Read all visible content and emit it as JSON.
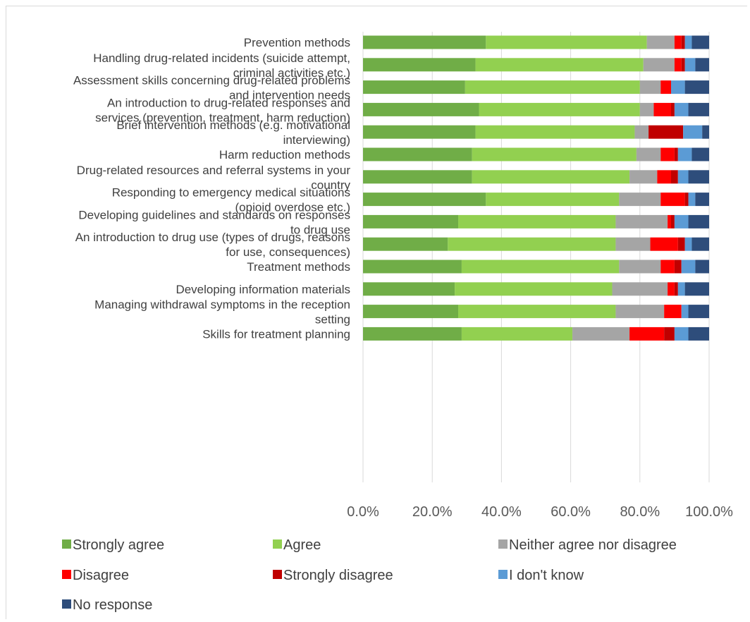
{
  "chart_data": {
    "type": "bar",
    "orientation": "horizontal",
    "stacked": true,
    "percent": true,
    "title": "",
    "xlabel": "",
    "ylabel": "",
    "xlim": [
      0,
      100
    ],
    "x_ticks": [
      "0.0%",
      "20.0%",
      "40.0%",
      "60.0%",
      "80.0%",
      "100.0%"
    ],
    "grid": true,
    "legend_position": "bottom",
    "categories": [
      "Prevention methods",
      "Handling drug-related incidents (suicide attempt, criminal activities etc.)",
      "Assessment skills concerning drug-related problems and intervention needs",
      "An introduction to drug-related responses and services (prevention, treatment, harm reduction)",
      "Brief intervention methods (e.g. motivational interviewing)",
      "Harm reduction methods",
      "Drug-related resources and referral systems in your country",
      "Responding to emergency medical situations (opioid overdose etc.)",
      "Developing guidelines and standards on responses to drug use",
      "An introduction to drug use (types of drugs, reasons for use, consequences)",
      "Treatment methods",
      "Developing information materials",
      "Managing withdrawal symptoms in the reception setting",
      "Skills for treatment planning"
    ],
    "category_lines": [
      [
        "Prevention methods"
      ],
      [
        "Handling drug-related incidents (suicide attempt,",
        "criminal activities etc.)"
      ],
      [
        "Assessment skills concerning drug-related problems",
        "and intervention needs"
      ],
      [
        "An introduction to drug-related responses and",
        "services (prevention, treatment, harm reduction)"
      ],
      [
        "Brief intervention methods (e.g. motivational",
        "interviewing)"
      ],
      [
        "Harm reduction methods"
      ],
      [
        "Drug-related resources and referral systems in your",
        "country"
      ],
      [
        "Responding to emergency medical situations",
        "(opioid overdose etc.)"
      ],
      [
        "Developing guidelines and standards on responses",
        "to drug use"
      ],
      [
        "An introduction to drug use (types of drugs, reasons",
        "for use, consequences)"
      ],
      [
        "Treatment methods"
      ],
      [
        "Developing information materials"
      ],
      [
        "Managing withdrawal symptoms in the reception",
        "setting"
      ],
      [
        "Skills for treatment planning"
      ]
    ],
    "series": [
      {
        "name": "Strongly agree",
        "color": "#70ad47",
        "values": [
          35.5,
          32.5,
          29.5,
          33.5,
          32.5,
          31.5,
          31.5,
          35.5,
          27.5,
          24.5,
          28.5,
          26.5,
          27.5,
          28.5
        ]
      },
      {
        "name": "Agree",
        "color": "#92d050",
        "values": [
          46.5,
          48.5,
          50.5,
          46.5,
          46.0,
          47.5,
          45.5,
          38.5,
          45.5,
          48.5,
          45.5,
          45.5,
          45.5,
          32.0
        ]
      },
      {
        "name": "Neither agree nor disagree",
        "color": "#a5a5a5",
        "values": [
          8.0,
          9.0,
          6.0,
          4.0,
          4.0,
          7.0,
          8.0,
          12.0,
          15.0,
          10.0,
          12.0,
          16.0,
          14.0,
          16.5
        ]
      },
      {
        "name": "Disagree",
        "color": "#ff0000",
        "values": [
          2.0,
          2.0,
          3.0,
          5.0,
          0.0,
          4.0,
          4.0,
          7.0,
          1.0,
          8.0,
          4.0,
          2.0,
          5.0,
          10.0
        ]
      },
      {
        "name": "Strongly disagree",
        "color": "#c00000",
        "values": [
          1.0,
          1.0,
          0.0,
          1.0,
          10.0,
          1.0,
          2.0,
          1.0,
          1.0,
          2.0,
          2.0,
          1.0,
          0.0,
          3.0
        ]
      },
      {
        "name": "I don't know",
        "color": "#5b9bd5",
        "values": [
          2.0,
          3.0,
          4.0,
          4.0,
          5.5,
          4.0,
          3.0,
          2.0,
          4.0,
          2.0,
          4.0,
          2.0,
          2.0,
          4.0
        ]
      },
      {
        "name": "No response",
        "color": "#2e4d7b",
        "values": [
          5.0,
          4.0,
          7.0,
          6.0,
          2.0,
          5.0,
          6.0,
          4.0,
          6.0,
          5.0,
          4.0,
          7.0,
          6.0,
          6.0
        ]
      }
    ]
  }
}
